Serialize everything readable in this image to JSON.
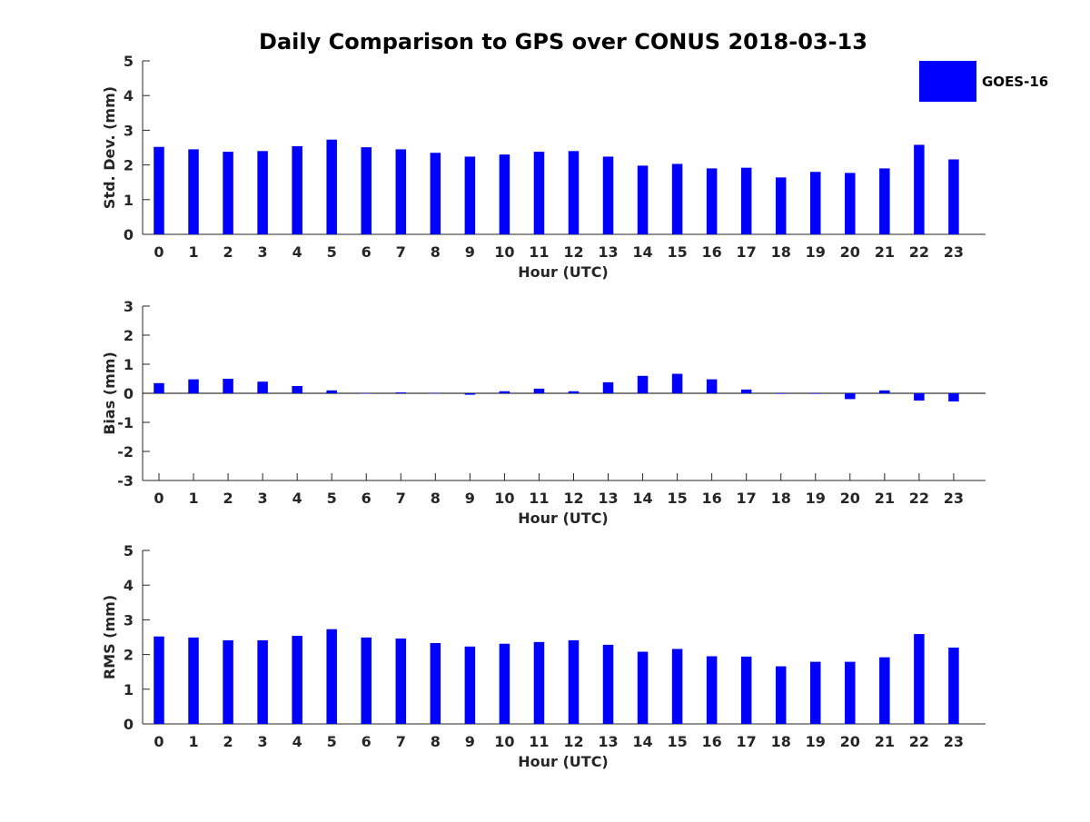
{
  "title": "Daily Comparison to GPS over CONUS 2018-03-13",
  "legend": {
    "label": "GOES-16",
    "color": "#0000ff",
    "placement": "top-right"
  },
  "chart_data": [
    {
      "type": "bar",
      "name": "std-dev",
      "title": "Daily Comparison to GPS over CONUS 2018-03-13",
      "xlabel": "Hour (UTC)",
      "ylabel": "Std. Dev. (mm)",
      "ylim": [
        0,
        5
      ],
      "yticks": [
        0,
        1,
        2,
        3,
        4,
        5
      ],
      "categories": [
        "0",
        "1",
        "2",
        "3",
        "4",
        "5",
        "6",
        "7",
        "8",
        "9",
        "10",
        "11",
        "12",
        "13",
        "14",
        "15",
        "16",
        "17",
        "18",
        "19",
        "20",
        "21",
        "22",
        "23"
      ],
      "series": [
        {
          "name": "GOES-16",
          "color": "#0000ff",
          "values": [
            2.52,
            2.45,
            2.38,
            2.4,
            2.54,
            2.73,
            2.51,
            2.45,
            2.35,
            2.24,
            2.3,
            2.38,
            2.4,
            2.24,
            1.98,
            2.03,
            1.9,
            1.92,
            1.64,
            1.8,
            1.77,
            1.9,
            2.58,
            2.16
          ]
        }
      ]
    },
    {
      "type": "bar",
      "name": "bias",
      "xlabel": "Hour (UTC)",
      "ylabel": "Bias (mm)",
      "ylim": [
        -3,
        3
      ],
      "yticks": [
        -3,
        -2,
        -1,
        0,
        1,
        2,
        3
      ],
      "categories": [
        "0",
        "1",
        "2",
        "3",
        "4",
        "5",
        "6",
        "7",
        "8",
        "9",
        "10",
        "11",
        "12",
        "13",
        "14",
        "15",
        "16",
        "17",
        "18",
        "19",
        "20",
        "21",
        "22",
        "23"
      ],
      "series": [
        {
          "name": "GOES-16",
          "color": "#0000ff",
          "values": [
            0.35,
            0.48,
            0.5,
            0.4,
            0.25,
            0.1,
            0.0,
            0.03,
            0.0,
            -0.05,
            0.07,
            0.16,
            0.07,
            0.38,
            0.6,
            0.67,
            0.48,
            0.13,
            -0.02,
            -0.02,
            -0.2,
            0.1,
            -0.25,
            -0.28
          ]
        }
      ]
    },
    {
      "type": "bar",
      "name": "rms",
      "xlabel": "Hour (UTC)",
      "ylabel": "RMS (mm)",
      "ylim": [
        0,
        5
      ],
      "yticks": [
        0,
        1,
        2,
        3,
        4,
        5
      ],
      "categories": [
        "0",
        "1",
        "2",
        "3",
        "4",
        "5",
        "6",
        "7",
        "8",
        "9",
        "10",
        "11",
        "12",
        "13",
        "14",
        "15",
        "16",
        "17",
        "18",
        "19",
        "20",
        "21",
        "22",
        "23"
      ],
      "series": [
        {
          "name": "GOES-16",
          "color": "#0000ff",
          "values": [
            2.52,
            2.49,
            2.41,
            2.41,
            2.54,
            2.73,
            2.49,
            2.46,
            2.33,
            2.23,
            2.31,
            2.36,
            2.41,
            2.28,
            2.08,
            2.16,
            1.95,
            1.94,
            1.66,
            1.79,
            1.79,
            1.92,
            2.59,
            2.2
          ]
        }
      ]
    }
  ]
}
